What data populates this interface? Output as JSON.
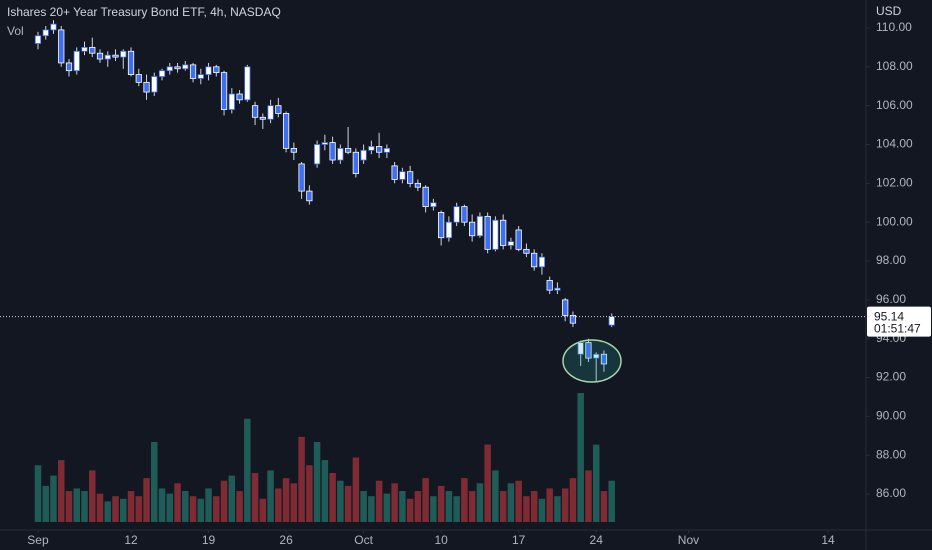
{
  "chart_data": {
    "type": "candlestick",
    "title": "Ishares 20+ Year Treasury Bond ETF, 4h, NASDAQ",
    "volume_label": "Vol",
    "currency": "USD",
    "countdown": "01:51:47",
    "up_color": "#ffffff",
    "down_color": "#3d6ff0",
    "wick_color": "#d1d4dc",
    "volume_up_color": "#1f5c58",
    "volume_down_color": "#7e2b33",
    "ylim": [
      84.15,
      111.44
    ],
    "yticks": [
      {
        "value": 86,
        "label": "86.00"
      },
      {
        "value": 88,
        "label": "88.00"
      },
      {
        "value": 90,
        "label": "90.00"
      },
      {
        "value": 92,
        "label": "92.00"
      },
      {
        "value": 94,
        "label": "94.00"
      },
      {
        "value": 96,
        "label": "96.00"
      },
      {
        "value": 98,
        "label": "98.00"
      },
      {
        "value": 100,
        "label": "100.00"
      },
      {
        "value": 102,
        "label": "102.00"
      },
      {
        "value": 104,
        "label": "104.00"
      },
      {
        "value": 106,
        "label": "106.00"
      },
      {
        "value": 108,
        "label": "108.00"
      },
      {
        "value": 110,
        "label": "110.00"
      }
    ],
    "xlim": [
      -4.9,
      106.8
    ],
    "xticks": [
      {
        "value": 0,
        "label": "Sep"
      },
      {
        "value": 12,
        "label": "12"
      },
      {
        "value": 22,
        "label": "19"
      },
      {
        "value": 32,
        "label": "26"
      },
      {
        "value": 42,
        "label": "Oct"
      },
      {
        "value": 52,
        "label": "10"
      },
      {
        "value": 62,
        "label": "17"
      },
      {
        "value": 72,
        "label": "24"
      },
      {
        "value": 83.9,
        "label": "Nov"
      },
      {
        "value": 101.9,
        "label": "14"
      }
    ],
    "grid": false,
    "volume_ylim": [
      0,
      100
    ],
    "candles": [
      {
        "open": 109.2,
        "high": 109.8,
        "low": 108.9,
        "close": 109.6
      },
      {
        "open": 109.6,
        "high": 110.1,
        "low": 109.4,
        "close": 109.9
      },
      {
        "open": 109.9,
        "high": 110.4,
        "low": 109.7,
        "close": 110.2
      },
      {
        "open": 109.9,
        "high": 110.1,
        "low": 108.0,
        "close": 108.2
      },
      {
        "open": 108.2,
        "high": 108.4,
        "low": 107.5,
        "close": 107.8
      },
      {
        "open": 107.8,
        "high": 109.0,
        "low": 107.6,
        "close": 108.8
      },
      {
        "open": 108.8,
        "high": 109.3,
        "low": 108.6,
        "close": 109.0
      },
      {
        "open": 109.0,
        "high": 109.5,
        "low": 108.5,
        "close": 108.7
      },
      {
        "open": 108.7,
        "high": 108.9,
        "low": 108.2,
        "close": 108.4
      },
      {
        "open": 108.4,
        "high": 108.8,
        "low": 108.0,
        "close": 108.6
      },
      {
        "open": 108.6,
        "high": 108.9,
        "low": 108.3,
        "close": 108.5
      },
      {
        "open": 108.5,
        "high": 108.9,
        "low": 107.9,
        "close": 108.8
      },
      {
        "open": 108.8,
        "high": 109.0,
        "low": 107.5,
        "close": 107.6
      },
      {
        "open": 107.6,
        "high": 107.9,
        "low": 107.0,
        "close": 107.2
      },
      {
        "open": 107.2,
        "high": 107.6,
        "low": 106.3,
        "close": 106.7
      },
      {
        "open": 106.7,
        "high": 107.7,
        "low": 106.5,
        "close": 107.5
      },
      {
        "open": 107.5,
        "high": 107.9,
        "low": 107.3,
        "close": 107.8
      },
      {
        "open": 107.8,
        "high": 108.2,
        "low": 107.6,
        "close": 108.0
      },
      {
        "open": 108.0,
        "high": 108.2,
        "low": 107.7,
        "close": 107.9
      },
      {
        "open": 107.9,
        "high": 108.3,
        "low": 107.8,
        "close": 108.1
      },
      {
        "open": 108.1,
        "high": 108.2,
        "low": 107.2,
        "close": 107.4
      },
      {
        "open": 107.4,
        "high": 107.9,
        "low": 107.1,
        "close": 107.6
      },
      {
        "open": 107.6,
        "high": 108.2,
        "low": 107.3,
        "close": 108.0
      },
      {
        "open": 108.0,
        "high": 108.1,
        "low": 107.5,
        "close": 107.7
      },
      {
        "open": 107.7,
        "high": 107.8,
        "low": 105.5,
        "close": 105.8
      },
      {
        "open": 105.8,
        "high": 106.9,
        "low": 105.6,
        "close": 106.6
      },
      {
        "open": 106.6,
        "high": 106.8,
        "low": 106.1,
        "close": 106.3
      },
      {
        "open": 106.3,
        "high": 108.1,
        "low": 106.2,
        "close": 108.0
      },
      {
        "open": 106.0,
        "high": 106.2,
        "low": 105.0,
        "close": 105.4
      },
      {
        "open": 105.4,
        "high": 105.6,
        "low": 104.8,
        "close": 105.3
      },
      {
        "open": 105.3,
        "high": 106.3,
        "low": 105.1,
        "close": 106.0
      },
      {
        "open": 106.0,
        "high": 106.4,
        "low": 105.4,
        "close": 105.6
      },
      {
        "open": 105.6,
        "high": 105.7,
        "low": 103.6,
        "close": 103.8
      },
      {
        "open": 103.8,
        "high": 104.1,
        "low": 103.2,
        "close": 103.6
      },
      {
        "open": 103.0,
        "high": 103.1,
        "low": 101.2,
        "close": 101.6
      },
      {
        "open": 101.6,
        "high": 101.9,
        "low": 100.9,
        "close": 101.1
      },
      {
        "open": 103.0,
        "high": 104.2,
        "low": 102.8,
        "close": 104.0
      },
      {
        "open": 104.0,
        "high": 104.5,
        "low": 103.7,
        "close": 104.1
      },
      {
        "open": 104.1,
        "high": 104.4,
        "low": 103.0,
        "close": 103.2
      },
      {
        "open": 103.2,
        "high": 104.0,
        "low": 103.0,
        "close": 103.8
      },
      {
        "open": 103.8,
        "high": 104.9,
        "low": 103.5,
        "close": 103.6
      },
      {
        "open": 103.6,
        "high": 103.8,
        "low": 102.3,
        "close": 102.5
      },
      {
        "open": 103.2,
        "high": 104.0,
        "low": 103.0,
        "close": 103.7
      },
      {
        "open": 103.7,
        "high": 104.2,
        "low": 103.5,
        "close": 103.9
      },
      {
        "open": 103.9,
        "high": 104.6,
        "low": 103.3,
        "close": 103.6
      },
      {
        "open": 103.6,
        "high": 104.0,
        "low": 103.3,
        "close": 103.8
      },
      {
        "open": 102.9,
        "high": 103.1,
        "low": 102.0,
        "close": 102.2
      },
      {
        "open": 102.2,
        "high": 102.8,
        "low": 102.0,
        "close": 102.6
      },
      {
        "open": 102.6,
        "high": 102.9,
        "low": 101.8,
        "close": 102.0
      },
      {
        "open": 102.0,
        "high": 102.2,
        "low": 101.6,
        "close": 101.8
      },
      {
        "open": 101.8,
        "high": 101.9,
        "low": 100.5,
        "close": 100.8
      },
      {
        "open": 100.8,
        "high": 101.2,
        "low": 100.6,
        "close": 101.0
      },
      {
        "open": 100.5,
        "high": 100.6,
        "low": 98.8,
        "close": 99.2
      },
      {
        "open": 99.2,
        "high": 100.3,
        "low": 99.0,
        "close": 100.0
      },
      {
        "open": 100.0,
        "high": 101.0,
        "low": 99.8,
        "close": 100.8
      },
      {
        "open": 100.8,
        "high": 100.9,
        "low": 99.8,
        "close": 100.0
      },
      {
        "open": 100.0,
        "high": 100.4,
        "low": 99.0,
        "close": 99.3
      },
      {
        "open": 99.3,
        "high": 100.5,
        "low": 99.2,
        "close": 100.3
      },
      {
        "open": 100.3,
        "high": 100.5,
        "low": 98.4,
        "close": 98.6
      },
      {
        "open": 98.6,
        "high": 100.3,
        "low": 98.5,
        "close": 100.1
      },
      {
        "open": 100.1,
        "high": 100.4,
        "low": 98.6,
        "close": 98.8
      },
      {
        "open": 98.8,
        "high": 99.2,
        "low": 98.6,
        "close": 99.0
      },
      {
        "open": 99.6,
        "high": 99.8,
        "low": 98.5,
        "close": 98.6
      },
      {
        "open": 98.6,
        "high": 98.9,
        "low": 98.2,
        "close": 98.4
      },
      {
        "open": 98.4,
        "high": 98.6,
        "low": 97.5,
        "close": 97.7
      },
      {
        "open": 97.7,
        "high": 98.4,
        "low": 97.3,
        "close": 98.2
      },
      {
        "open": 97.0,
        "high": 97.2,
        "low": 96.3,
        "close": 96.5
      },
      {
        "open": 96.5,
        "high": 96.9,
        "low": 96.3,
        "close": 96.6
      },
      {
        "open": 96.0,
        "high": 96.1,
        "low": 94.9,
        "close": 95.2
      },
      {
        "open": 95.2,
        "high": 95.4,
        "low": 94.6,
        "close": 94.8
      },
      {
        "open": 93.2,
        "high": 93.9,
        "low": 92.6,
        "close": 93.8
      },
      {
        "open": 93.8,
        "high": 94.0,
        "low": 92.8,
        "close": 93.0
      },
      {
        "open": 93.0,
        "high": 93.3,
        "low": 91.8,
        "close": 93.2
      },
      {
        "open": 93.2,
        "high": 93.4,
        "low": 92.3,
        "close": 92.7
      },
      {
        "open": 94.7,
        "high": 95.3,
        "low": 94.6,
        "close": 95.14
      }
    ],
    "volume": [
      22,
      14,
      18,
      24,
      12,
      13,
      12,
      20,
      11,
      8,
      10,
      9,
      12,
      10,
      17,
      31,
      13,
      11,
      15,
      12,
      10,
      9,
      13,
      10,
      16,
      18,
      12,
      40,
      19,
      9,
      20,
      13,
      17,
      15,
      33,
      22,
      31,
      24,
      19,
      16,
      14,
      25,
      12,
      10,
      16,
      11,
      15,
      12,
      9,
      12,
      17,
      10,
      14,
      12,
      10,
      17,
      12,
      15,
      30,
      20,
      12,
      15,
      16,
      10,
      12,
      9,
      13,
      10,
      13,
      17,
      50,
      20,
      30,
      12,
      16
    ]
  }
}
